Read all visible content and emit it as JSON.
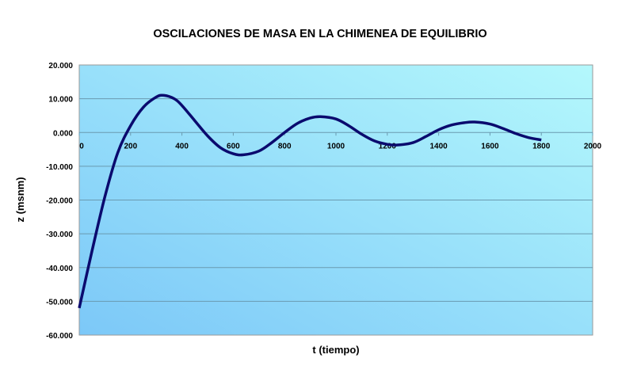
{
  "chart_data": {
    "type": "line",
    "title": "OSCILACIONES DE MASA EN LA CHIMENEA DE EQUILIBRIO",
    "xlabel": "t (tiempo)",
    "ylabel": "z (msnm)",
    "xlim": [
      0,
      2000
    ],
    "ylim": [
      -60,
      20
    ],
    "xticks": [
      "0",
      "200",
      "400",
      "600",
      "800",
      "1000",
      "1200",
      "1400",
      "1600",
      "1800",
      "2000"
    ],
    "yticks": [
      "20.000",
      "10.000",
      "0.000",
      "-10.000",
      "-20.000",
      "-30.000",
      "-40.000",
      "-50.000",
      "-60.000"
    ],
    "grid": true,
    "legend": "none",
    "series": [
      {
        "name": "z",
        "color": "#0a0a6e",
        "x": [
          0,
          50,
          100,
          150,
          200,
          250,
          300,
          330,
          370,
          400,
          450,
          500,
          550,
          600,
          640,
          700,
          750,
          800,
          850,
          900,
          940,
          1000,
          1050,
          1100,
          1150,
          1200,
          1240,
          1300,
          1350,
          1400,
          1450,
          1500,
          1540,
          1600,
          1650,
          1700,
          1750,
          1800
        ],
        "y": [
          -52,
          -35,
          -19,
          -6,
          2,
          7.5,
          10.5,
          11,
          10,
          8,
          3.5,
          -1,
          -4.5,
          -6.3,
          -6.6,
          -5.5,
          -3,
          0,
          2.7,
          4.3,
          4.7,
          4,
          2,
          -0.5,
          -2.5,
          -3.5,
          -3.7,
          -3,
          -1.2,
          0.8,
          2.2,
          2.9,
          3.1,
          2.5,
          1.2,
          -0.3,
          -1.5,
          -2.2
        ]
      }
    ]
  }
}
